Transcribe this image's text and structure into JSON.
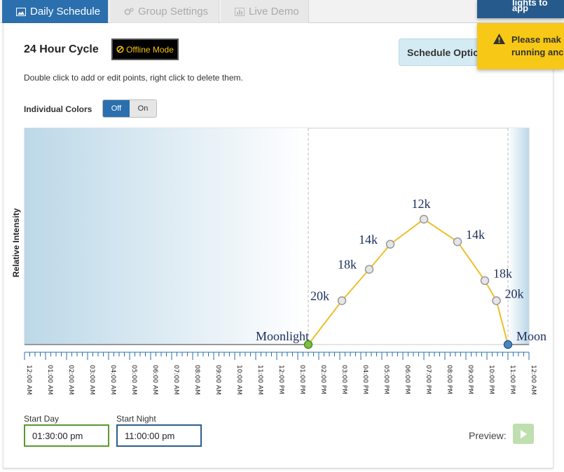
{
  "tabs": [
    {
      "label": "Daily Schedule",
      "icon": "image-icon",
      "active": true
    },
    {
      "label": "Group Settings",
      "icon": "gears-icon",
      "active": false
    },
    {
      "label": "Live Demo",
      "icon": "bar-chart-icon",
      "active": false
    }
  ],
  "notifications": {
    "top_text": "lights to app",
    "warning_lines": [
      "Please mak",
      "running anc"
    ]
  },
  "header": {
    "title": "24 Hour Cycle",
    "offline_label": "Offline Mode",
    "schedule_button": "Schedule Options"
  },
  "instructions": "Double click to add or edit points, right click to delete them.",
  "individual_colors": {
    "label": "Individual Colors",
    "off_label": "Off",
    "on_label": "On",
    "selected": "Off"
  },
  "chart_data": {
    "type": "line",
    "ylabel": "Relative Intensity",
    "x_ticks": [
      "12:00 AM",
      "01:00 AM",
      "02:00 AM",
      "03:00 AM",
      "04:00 AM",
      "05:00 AM",
      "06:00 AM",
      "07:00 AM",
      "08:00 AM",
      "09:00 AM",
      "10:00 AM",
      "11:00 AM",
      "12:00 PM",
      "01:00 PM",
      "02:00 PM",
      "03:00 PM",
      "04:00 PM",
      "05:00 PM",
      "06:00 PM",
      "07:00 PM",
      "08:00 PM",
      "09:00 PM",
      "10:00 PM",
      "11:00 PM",
      "12:00 AM"
    ],
    "x_range_hours": [
      0,
      24
    ],
    "y_range": [
      0,
      1
    ],
    "points": [
      {
        "hour": 0,
        "y": 0
      },
      {
        "hour": 13.5,
        "y": 0,
        "label": "Moonlight",
        "kind": "start-day"
      },
      {
        "hour": 15.1,
        "y": 0.35,
        "label": "20k"
      },
      {
        "hour": 16.4,
        "y": 0.6,
        "label": "18k"
      },
      {
        "hour": 17.4,
        "y": 0.8,
        "label": "14k"
      },
      {
        "hour": 19.0,
        "y": 1.0,
        "label": "12k"
      },
      {
        "hour": 20.6,
        "y": 0.82,
        "label": "14k"
      },
      {
        "hour": 21.9,
        "y": 0.51,
        "label": "18k"
      },
      {
        "hour": 22.45,
        "y": 0.35,
        "label": "20k"
      },
      {
        "hour": 23.0,
        "y": 0,
        "label": "Moon",
        "kind": "start-night"
      },
      {
        "hour": 24,
        "y": 0
      }
    ],
    "day_line_color": "#eebf2a",
    "night_line_color": "#999999",
    "start_day_point_color": "#7dbf3f",
    "start_night_point_color": "#4a86c0"
  },
  "start_day": {
    "label": "Start Day",
    "value": "01:30:00 pm",
    "color": "#5a9a2e"
  },
  "start_night": {
    "label": "Start Night",
    "value": "11:00:00 pm",
    "color": "#2c5d8c"
  },
  "preview": {
    "label": "Preview:",
    "icon": "play-icon"
  }
}
